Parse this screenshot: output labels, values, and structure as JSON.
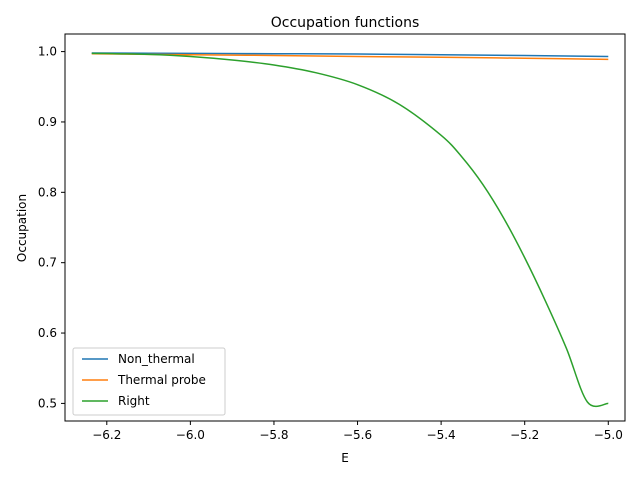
{
  "chart_data": {
    "type": "line",
    "title": "Occupation functions",
    "xlabel": "E",
    "ylabel": "Occupation",
    "xlim": [
      -6.3,
      -4.96
    ],
    "ylim": [
      0.475,
      1.025
    ],
    "x_ticks": [
      -6.2,
      -6.0,
      -5.8,
      -5.6,
      -5.4,
      -5.2,
      -5.0
    ],
    "x_tick_labels": [
      "−6.2",
      "−6.0",
      "−5.8",
      "−5.6",
      "−5.4",
      "−5.2",
      "−5.0"
    ],
    "y_ticks": [
      0.5,
      0.6,
      0.7,
      0.8,
      0.9,
      1.0
    ],
    "y_tick_labels": [
      "0.5",
      "0.6",
      "0.7",
      "0.8",
      "0.9",
      "1.0"
    ],
    "grid": false,
    "legend_position": "lower-left",
    "series": [
      {
        "name": "Non_thermal",
        "color": "#1f77b4",
        "x": [
          -6.236,
          -6.0,
          -5.8,
          -5.6,
          -5.4,
          -5.2,
          -5.0
        ],
        "y": [
          0.998,
          0.9975,
          0.997,
          0.9965,
          0.9955,
          0.9945,
          0.993
        ]
      },
      {
        "name": "Thermal probe",
        "color": "#ff7f0e",
        "x": [
          -6.236,
          -6.0,
          -5.8,
          -5.6,
          -5.4,
          -5.2,
          -5.0
        ],
        "y": [
          0.997,
          0.9955,
          0.9945,
          0.993,
          0.992,
          0.9905,
          0.989
        ]
      },
      {
        "name": "Right",
        "color": "#2ca02c",
        "x": [
          -6.236,
          -6.2,
          -6.1,
          -6.0,
          -5.9,
          -5.8,
          -5.7,
          -5.6,
          -5.5,
          -5.4,
          -5.35,
          -5.3,
          -5.25,
          -5.2,
          -5.15,
          -5.1,
          -5.05,
          -5.0
        ],
        "y": [
          0.9975,
          0.9972,
          0.996,
          0.993,
          0.988,
          0.981,
          0.97,
          0.953,
          0.925,
          0.881,
          0.85,
          0.811,
          0.763,
          0.707,
          0.645,
          0.578,
          0.502,
          0.5
        ]
      }
    ]
  }
}
